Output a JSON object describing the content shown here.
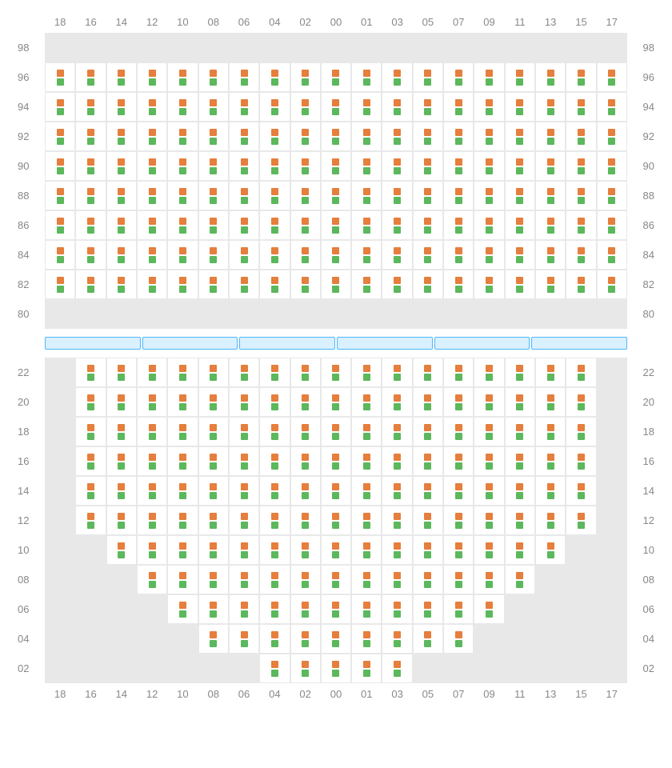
{
  "colors": {
    "marker_top": "#e67e3c",
    "marker_bot": "#5cb85c",
    "empty_bg": "#e8e8e8",
    "filled_bg": "#ffffff",
    "grid_border": "#e8e8e8",
    "label_color": "#888888",
    "divider_fill": "#d9f0ff",
    "divider_border": "#4db8ff"
  },
  "columns": [
    "18",
    "16",
    "14",
    "12",
    "10",
    "08",
    "06",
    "04",
    "02",
    "00",
    "01",
    "03",
    "05",
    "07",
    "09",
    "11",
    "13",
    "15",
    "17"
  ],
  "upper": {
    "rows": [
      {
        "label": "98",
        "count": 0,
        "offset": 0
      },
      {
        "label": "96",
        "count": 19,
        "offset": 0
      },
      {
        "label": "94",
        "count": 19,
        "offset": 0
      },
      {
        "label": "92",
        "count": 19,
        "offset": 0
      },
      {
        "label": "90",
        "count": 19,
        "offset": 0
      },
      {
        "label": "88",
        "count": 19,
        "offset": 0
      },
      {
        "label": "86",
        "count": 19,
        "offset": 0
      },
      {
        "label": "84",
        "count": 19,
        "offset": 0
      },
      {
        "label": "82",
        "count": 19,
        "offset": 0
      },
      {
        "label": "80",
        "count": 0,
        "offset": 0
      }
    ]
  },
  "divider_segments": 6,
  "lower": {
    "rows": [
      {
        "label": "22",
        "count": 17,
        "offset": 1
      },
      {
        "label": "20",
        "count": 17,
        "offset": 1
      },
      {
        "label": "18",
        "count": 17,
        "offset": 1
      },
      {
        "label": "16",
        "count": 17,
        "offset": 1
      },
      {
        "label": "14",
        "count": 17,
        "offset": 1
      },
      {
        "label": "12",
        "count": 17,
        "offset": 1
      },
      {
        "label": "10",
        "count": 15,
        "offset": 2
      },
      {
        "label": "08",
        "count": 13,
        "offset": 3
      },
      {
        "label": "06",
        "count": 11,
        "offset": 4
      },
      {
        "label": "04",
        "count": 9,
        "offset": 5
      },
      {
        "label": "02",
        "count": 5,
        "offset": 7
      }
    ]
  }
}
